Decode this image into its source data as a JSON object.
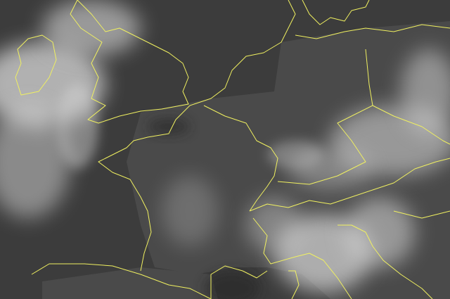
{
  "map": {
    "type": "infrared satellite image",
    "colors": {
      "border": "#f0f060",
      "land": "#4a4a4a",
      "sea": "#3c3c3c",
      "cloud": "#d8d8d8"
    },
    "labels_visible": false
  }
}
